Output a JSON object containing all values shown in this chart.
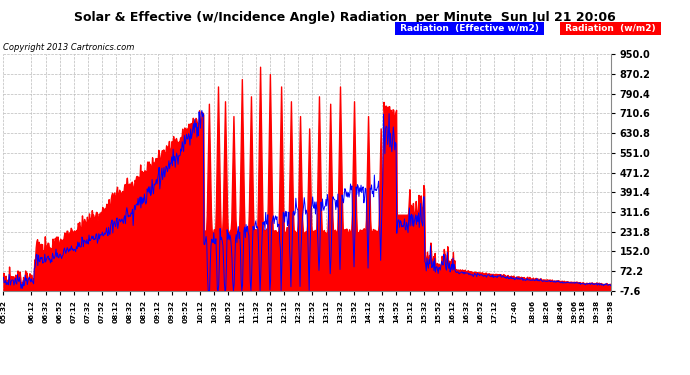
{
  "title": "Solar & Effective (w/Incidence Angle) Radiation  per Minute  Sun Jul 21 20:06",
  "copyright": "Copyright 2013 Cartronics.com",
  "legend_blue": "Radiation  (Effective w/m2)",
  "legend_red": "Radiation  (w/m2)",
  "ylim": [
    -7.6,
    950.0
  ],
  "yticks": [
    -7.6,
    72.2,
    152.0,
    231.8,
    311.6,
    391.4,
    471.2,
    551.0,
    630.8,
    710.6,
    790.4,
    870.2,
    950.0
  ],
  "bg_color": "#ffffff",
  "plot_bg_color": "#ffffff",
  "grid_color": "#bbbbbb",
  "fill_color": "#ff0000",
  "line_color": "#0000ff",
  "xtick_labels": [
    "05:32",
    "06:12",
    "06:32",
    "06:52",
    "07:12",
    "07:32",
    "07:52",
    "08:12",
    "08:32",
    "08:52",
    "09:12",
    "09:32",
    "09:52",
    "10:12",
    "10:32",
    "10:52",
    "11:12",
    "11:32",
    "11:52",
    "12:12",
    "12:32",
    "12:52",
    "13:12",
    "13:32",
    "13:52",
    "14:12",
    "14:32",
    "14:52",
    "15:12",
    "15:32",
    "15:52",
    "16:12",
    "16:32",
    "16:52",
    "17:12",
    "17:40",
    "18:06",
    "18:26",
    "18:46",
    "19:06",
    "19:18",
    "19:38",
    "19:58"
  ]
}
